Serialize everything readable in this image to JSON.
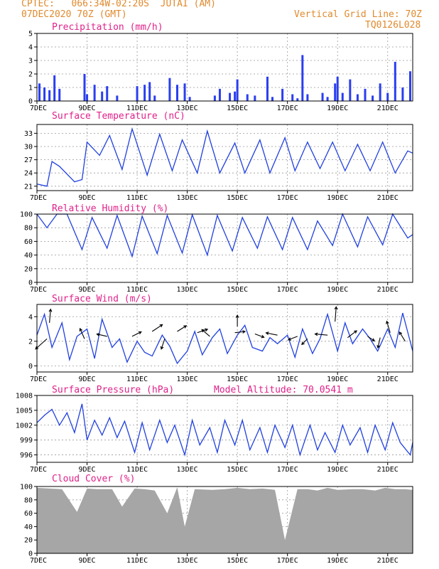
{
  "header": {
    "line1_left": "CPTEC:   066:34W-02:20S  JUTAI (AM)",
    "line2_left": "07DEC2020 70Z (GMT)",
    "line2_right": "Vertical Grid Line: 70Z",
    "line3_right": "TQ0126L028"
  },
  "x_tick_labels": [
    "7DEC",
    "9DEC",
    "11DEC",
    "13DEC",
    "15DEC",
    "17DEC",
    "19DEC",
    "21DEC"
  ],
  "colors": {
    "header": "#e08a2e",
    "title": "#e0218a",
    "line": "#2040e0",
    "bar": "#2a3ef0",
    "cloud": "#a6a6a6"
  },
  "chart_data": [
    {
      "id": "precip",
      "type": "bar",
      "title": "Precipitation (mm/h)",
      "ylim": [
        0,
        5
      ],
      "yticks": [
        0,
        1,
        2,
        3,
        4,
        5
      ],
      "series": [
        {
          "x_days": [
            7.1,
            7.3,
            7.5,
            7.7,
            7.9,
            8.9,
            9.0,
            9.3,
            9.6,
            9.8,
            10.2,
            11.0,
            11.3,
            11.5,
            11.7,
            12.3,
            12.6,
            12.9,
            13.1,
            14.1,
            14.3,
            14.7,
            14.9,
            15.0,
            15.4,
            15.7,
            16.2,
            16.4,
            16.8,
            17.2,
            17.4,
            17.6,
            17.8,
            18.4,
            18.6,
            18.9,
            19.0,
            19.2,
            19.5,
            19.8,
            20.1,
            20.4,
            20.7,
            21.0,
            21.3,
            21.6,
            21.9
          ],
          "values": [
            1.3,
            1.0,
            0.8,
            1.9,
            0.9,
            2.0,
            0.5,
            1.2,
            0.7,
            1.1,
            0.4,
            1.1,
            1.2,
            1.4,
            0.4,
            1.7,
            1.2,
            1.3,
            0.3,
            0.4,
            0.9,
            0.6,
            0.7,
            1.6,
            0.5,
            0.4,
            1.8,
            0.3,
            0.9,
            0.5,
            0.2,
            3.4,
            0.5,
            0.6,
            0.3,
            1.3,
            1.8,
            0.6,
            1.6,
            0.5,
            0.9,
            0.4,
            1.3,
            0.6,
            2.9,
            1.0,
            2.2
          ]
        }
      ]
    },
    {
      "id": "temp",
      "type": "line",
      "title": "Surface Temperature (nC)",
      "ylim": [
        20,
        35
      ],
      "yticks": [
        21,
        24,
        27,
        30,
        33
      ],
      "x_days": [
        7.0,
        7.4,
        7.6,
        7.9,
        8.5,
        8.8,
        9.0,
        9.5,
        9.9,
        10.4,
        10.8,
        11.4,
        11.9,
        12.4,
        12.8,
        13.4,
        13.8,
        14.3,
        14.9,
        15.3,
        15.9,
        16.3,
        16.9,
        17.3,
        17.8,
        18.3,
        18.8,
        19.3,
        19.8,
        20.3,
        20.8,
        21.3,
        21.8,
        22.0
      ],
      "values": [
        21.5,
        21.0,
        26.6,
        25.5,
        22.0,
        22.5,
        31.0,
        28.0,
        32.5,
        24.8,
        34.0,
        23.5,
        32.8,
        24.5,
        31.5,
        24.0,
        33.5,
        24.0,
        30.8,
        24.0,
        31.5,
        24.0,
        32.0,
        24.5,
        31.0,
        25.0,
        31.0,
        24.5,
        30.5,
        24.5,
        31.0,
        24.0,
        29.0,
        28.5
      ]
    },
    {
      "id": "rh",
      "type": "line",
      "title": "Relative Humidity (%)",
      "ylim": [
        0,
        100
      ],
      "yticks": [
        0,
        20,
        40,
        60,
        80,
        100
      ],
      "x_days": [
        7.0,
        7.4,
        7.8,
        8.2,
        8.8,
        9.2,
        9.8,
        10.2,
        10.8,
        11.2,
        11.8,
        12.2,
        12.8,
        13.2,
        13.8,
        14.2,
        14.8,
        15.2,
        15.8,
        16.2,
        16.8,
        17.2,
        17.8,
        18.2,
        18.8,
        19.2,
        19.8,
        20.2,
        20.8,
        21.2,
        21.8,
        22.0
      ],
      "values": [
        100,
        80,
        100,
        100,
        48,
        95,
        50,
        98,
        38,
        97,
        42,
        98,
        43,
        99,
        40,
        98,
        46,
        95,
        50,
        96,
        48,
        95,
        48,
        90,
        54,
        100,
        52,
        96,
        55,
        100,
        65,
        70
      ]
    },
    {
      "id": "wind",
      "type": "line",
      "title": "Surface Wind (m/s)",
      "ylim": [
        -0.5,
        5
      ],
      "yticks": [
        0,
        2,
        4
      ],
      "x_days": [
        7.0,
        7.3,
        7.6,
        8.0,
        8.3,
        8.6,
        9.0,
        9.3,
        9.6,
        10.0,
        10.3,
        10.6,
        11.0,
        11.3,
        11.6,
        12.0,
        12.3,
        12.6,
        13.0,
        13.3,
        13.6,
        14.0,
        14.3,
        14.6,
        15.0,
        15.3,
        15.6,
        16.0,
        16.3,
        16.6,
        17.0,
        17.3,
        17.6,
        18.0,
        18.3,
        18.6,
        19.0,
        19.3,
        19.6,
        20.0,
        20.3,
        20.6,
        21.0,
        21.3,
        21.6,
        22.0
      ],
      "values": [
        2.5,
        4.2,
        1.5,
        3.5,
        0.5,
        2.4,
        3.0,
        0.6,
        3.8,
        1.5,
        2.2,
        0.3,
        2.0,
        1.1,
        0.8,
        2.5,
        1.6,
        0.2,
        1.2,
        2.8,
        0.9,
        2.3,
        3.0,
        1.0,
        2.5,
        3.3,
        1.5,
        1.2,
        2.3,
        1.8,
        2.5,
        0.7,
        3.0,
        1.0,
        2.2,
        4.2,
        1.2,
        3.5,
        1.8,
        3.0,
        2.2,
        1.2,
        3.0,
        1.5,
        4.3,
        1.2
      ],
      "vectors": [
        {
          "x_day": 7.4,
          "y": 2.2,
          "u": -1.0,
          "v": -0.9
        },
        {
          "x_day": 7.5,
          "y": 3.5,
          "u": 0.1,
          "v": 1.2
        },
        {
          "x_day": 8.9,
          "y": 2.2,
          "u": -0.4,
          "v": 0.9
        },
        {
          "x_day": 9.8,
          "y": 2.4,
          "u": -0.9,
          "v": 0.2
        },
        {
          "x_day": 10.8,
          "y": 2.4,
          "u": 0.8,
          "v": 0.4
        },
        {
          "x_day": 11.6,
          "y": 2.8,
          "u": 0.9,
          "v": 0.6
        },
        {
          "x_day": 12.1,
          "y": 2.2,
          "u": -0.3,
          "v": -0.9
        },
        {
          "x_day": 12.6,
          "y": 2.8,
          "u": 0.8,
          "v": 0.5
        },
        {
          "x_day": 13.4,
          "y": 2.7,
          "u": 0.9,
          "v": 0.3
        },
        {
          "x_day": 13.9,
          "y": 2.4,
          "u": -0.7,
          "v": 0.6
        },
        {
          "x_day": 14.9,
          "y": 2.7,
          "u": 0.9,
          "v": 0.1
        },
        {
          "x_day": 15.0,
          "y": 3.2,
          "u": 0.0,
          "v": 1.0
        },
        {
          "x_day": 15.7,
          "y": 2.6,
          "u": 0.8,
          "v": -0.3
        },
        {
          "x_day": 16.6,
          "y": 2.5,
          "u": -1.0,
          "v": 0.2
        },
        {
          "x_day": 17.4,
          "y": 2.4,
          "u": -0.8,
          "v": -0.3
        },
        {
          "x_day": 17.8,
          "y": 2.2,
          "u": -0.5,
          "v": -0.5
        },
        {
          "x_day": 18.6,
          "y": 2.5,
          "u": -1.1,
          "v": 0.1
        },
        {
          "x_day": 18.9,
          "y": 3.6,
          "u": 0.1,
          "v": 1.3
        },
        {
          "x_day": 19.4,
          "y": 2.3,
          "u": 0.8,
          "v": 0.6
        },
        {
          "x_day": 20.2,
          "y": 2.4,
          "u": 0.6,
          "v": -0.4
        },
        {
          "x_day": 20.7,
          "y": 2.3,
          "u": -0.2,
          "v": -0.9
        },
        {
          "x_day": 21.1,
          "y": 2.7,
          "u": -0.3,
          "v": 1.0
        },
        {
          "x_day": 21.7,
          "y": 2.0,
          "u": -0.5,
          "v": 0.8
        }
      ]
    },
    {
      "id": "pressure",
      "type": "line",
      "title": "Surface Pressure (hPa)",
      "annotation": "Model Altitude: 70.0541 m",
      "ylim": [
        994.5,
        1008
      ],
      "yticks": [
        996,
        999,
        1002,
        1005,
        1008
      ],
      "x_days": [
        7.0,
        7.3,
        7.6,
        7.9,
        8.2,
        8.5,
        8.8,
        9.0,
        9.3,
        9.6,
        9.9,
        10.2,
        10.5,
        10.9,
        11.2,
        11.5,
        11.9,
        12.2,
        12.5,
        12.9,
        13.2,
        13.5,
        13.9,
        14.2,
        14.5,
        14.9,
        15.2,
        15.5,
        15.9,
        16.2,
        16.5,
        16.9,
        17.2,
        17.5,
        17.9,
        18.2,
        18.5,
        18.9,
        19.2,
        19.5,
        19.9,
        20.2,
        20.5,
        20.9,
        21.2,
        21.5,
        21.9,
        22.0
      ],
      "values": [
        1002.5,
        1004.0,
        1005.2,
        1002.0,
        1004.5,
        1000.5,
        1006.3,
        999.0,
        1003.0,
        1000.0,
        1003.5,
        999.5,
        1002.8,
        996.5,
        1002.5,
        997.0,
        1003.0,
        998.5,
        1002.0,
        996.0,
        1003.0,
        998.0,
        1001.5,
        996.5,
        1003.0,
        998.0,
        1003.0,
        997.0,
        1001.5,
        996.5,
        1002.0,
        997.5,
        1002.0,
        996.0,
        1002.0,
        997.0,
        1000.5,
        996.5,
        1002.0,
        998.0,
        1001.5,
        996.5,
        1002.0,
        997.0,
        1002.5,
        998.5,
        996.0,
        998.5
      ]
    },
    {
      "id": "cloud",
      "type": "area",
      "title": "Cloud Cover (%)",
      "ylim": [
        0,
        100
      ],
      "yticks": [
        0,
        20,
        40,
        60,
        80,
        100
      ],
      "x_days": [
        7.0,
        8.0,
        8.6,
        9.0,
        9.4,
        10.0,
        10.4,
        10.9,
        11.3,
        11.7,
        12.2,
        12.6,
        12.9,
        13.3,
        14.0,
        14.5,
        15.0,
        15.5,
        16.0,
        16.5,
        16.9,
        17.4,
        17.8,
        18.2,
        18.6,
        19.0,
        19.6,
        20.0,
        20.5,
        20.9,
        21.3,
        21.7,
        22.0
      ],
      "values": [
        98,
        96,
        62,
        97,
        96,
        96,
        70,
        97,
        96,
        94,
        60,
        99,
        40,
        96,
        95,
        96,
        98,
        96,
        97,
        95,
        20,
        96,
        96,
        94,
        98,
        95,
        96,
        96,
        94,
        98,
        96,
        96,
        95
      ]
    }
  ]
}
